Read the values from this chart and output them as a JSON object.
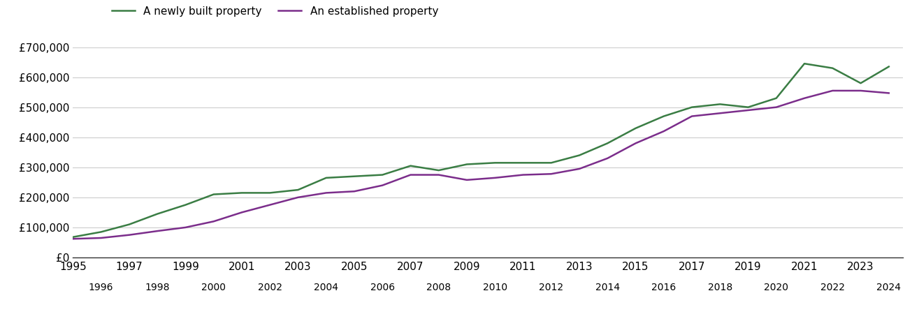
{
  "newly_built": {
    "years": [
      1995,
      1996,
      1997,
      1998,
      1999,
      2000,
      2001,
      2002,
      2003,
      2004,
      2005,
      2006,
      2007,
      2008,
      2009,
      2010,
      2011,
      2012,
      2013,
      2014,
      2015,
      2016,
      2017,
      2018,
      2019,
      2020,
      2021,
      2022,
      2023,
      2024
    ],
    "values": [
      68000,
      85000,
      110000,
      145000,
      175000,
      210000,
      215000,
      215000,
      225000,
      265000,
      270000,
      275000,
      305000,
      290000,
      310000,
      315000,
      315000,
      315000,
      340000,
      380000,
      430000,
      470000,
      500000,
      510000,
      500000,
      530000,
      645000,
      630000,
      580000,
      635000
    ]
  },
  "established": {
    "years": [
      1995,
      1996,
      1997,
      1998,
      1999,
      2000,
      2001,
      2002,
      2003,
      2004,
      2005,
      2006,
      2007,
      2008,
      2009,
      2010,
      2011,
      2012,
      2013,
      2014,
      2015,
      2016,
      2017,
      2018,
      2019,
      2020,
      2021,
      2022,
      2023,
      2024
    ],
    "values": [
      62000,
      65000,
      75000,
      88000,
      100000,
      120000,
      150000,
      175000,
      200000,
      215000,
      220000,
      240000,
      275000,
      275000,
      258000,
      265000,
      275000,
      278000,
      295000,
      330000,
      380000,
      420000,
      470000,
      480000,
      490000,
      500000,
      530000,
      555000,
      555000,
      547000
    ]
  },
  "newly_color": "#3a7d44",
  "established_color": "#7b2d8b",
  "line_width": 1.8,
  "ylim": [
    0,
    700000
  ],
  "yticks": [
    0,
    100000,
    200000,
    300000,
    400000,
    500000,
    600000,
    700000
  ],
  "ytick_labels": [
    "£0",
    "£100,000",
    "£200,000",
    "£300,000",
    "£400,000",
    "£500,000",
    "£600,000",
    "£700,000"
  ],
  "legend_labels": [
    "A newly built property",
    "An established property"
  ],
  "background_color": "#ffffff",
  "grid_color": "#cccccc",
  "grid_linewidth": 0.8,
  "font_size": 11,
  "legend_font_size": 11,
  "xlim_start": 1995,
  "xlim_end": 2024.5
}
